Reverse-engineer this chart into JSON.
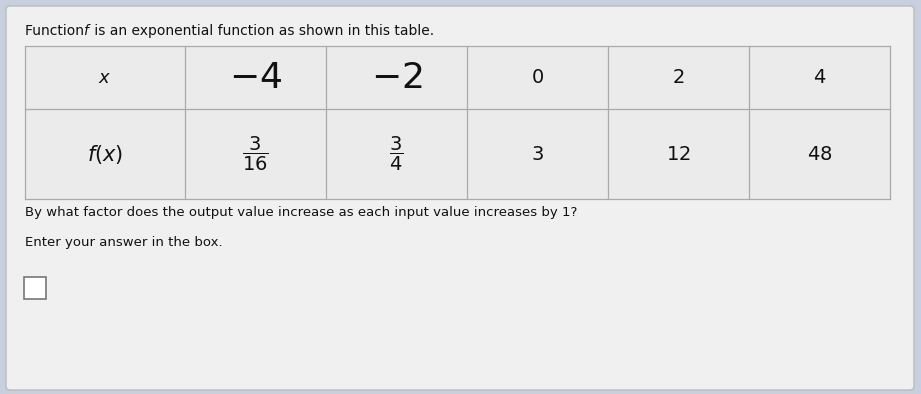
{
  "title_part1": "Function ",
  "title_f": "f",
  "title_part2": " is an exponential function as shown in this table.",
  "question": "By what factor does the output value increase as each input value increases by 1?",
  "answer_prompt": "Enter your answer in the box.",
  "x_values": [
    "-4",
    "-2",
    "0",
    "2",
    "4"
  ],
  "fx_values": [
    "\\frac{3}{16}",
    "\\frac{3}{4}",
    "3",
    "12",
    "48"
  ],
  "bg_color": "#c8d0e0",
  "panel_color": "#f0f0f0",
  "table_bg": "#ebebeb",
  "border_color": "#aaaaaa",
  "text_color": "#111111",
  "answer_box_color": "#ffffff"
}
